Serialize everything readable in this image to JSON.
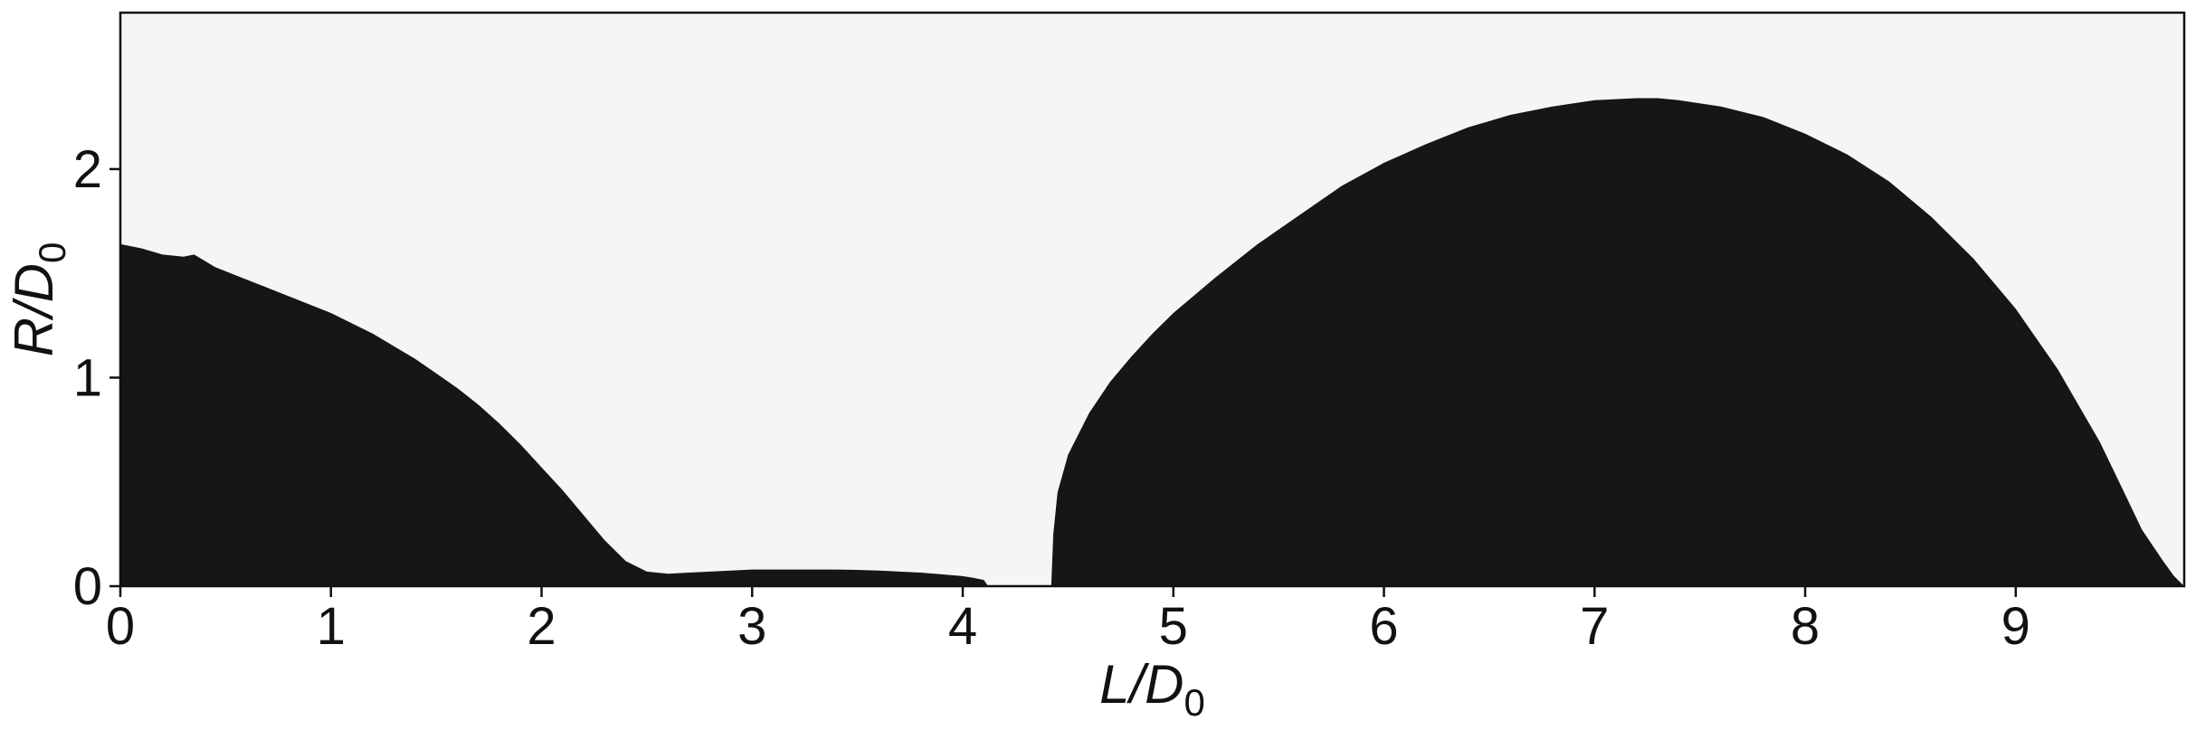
{
  "chart_data": {
    "type": "area",
    "title": "",
    "xlabel": {
      "main": "L/D",
      "sub": "0"
    },
    "ylabel": {
      "main": "R/D",
      "sub": "0"
    },
    "xlim": [
      0,
      9.8
    ],
    "ylim": [
      0,
      2.75
    ],
    "xticks": [
      "0",
      "1",
      "2",
      "3",
      "4",
      "5",
      "6",
      "7",
      "8",
      "9"
    ],
    "yticks": [
      "0",
      "1",
      "2"
    ],
    "grid": false,
    "colors": {
      "liquid": "#161616",
      "background": "#f5f5f5",
      "axes": "#111111"
    },
    "series": [
      {
        "x": [
          0,
          0.1,
          0.2,
          0.3,
          0.35,
          0.4,
          0.45,
          0.5,
          0.6,
          0.7,
          0.8,
          0.9,
          1.0,
          1.1,
          1.2,
          1.3,
          1.4,
          1.5,
          1.6,
          1.7,
          1.8,
          1.9,
          2.0,
          2.1,
          2.2,
          2.3,
          2.4,
          2.5,
          2.6,
          2.7,
          2.8,
          2.9,
          3.0,
          3.1,
          3.2,
          3.3,
          3.4,
          3.5,
          3.6,
          3.7,
          3.8,
          3.9,
          4.0,
          4.05,
          4.1,
          4.12
        ],
        "y": [
          1.64,
          1.62,
          1.59,
          1.58,
          1.59,
          1.56,
          1.53,
          1.51,
          1.47,
          1.43,
          1.39,
          1.35,
          1.31,
          1.26,
          1.21,
          1.15,
          1.09,
          1.02,
          0.95,
          0.87,
          0.78,
          0.68,
          0.57,
          0.46,
          0.34,
          0.22,
          0.12,
          0.07,
          0.06,
          0.065,
          0.07,
          0.075,
          0.08,
          0.08,
          0.08,
          0.08,
          0.08,
          0.078,
          0.075,
          0.07,
          0.065,
          0.057,
          0.048,
          0.04,
          0.03,
          0.0
        ]
      },
      {
        "x": [
          4.42,
          4.43,
          4.45,
          4.5,
          4.6,
          4.7,
          4.8,
          4.9,
          5.0,
          5.2,
          5.4,
          5.6,
          5.8,
          6.0,
          6.2,
          6.4,
          6.6,
          6.8,
          7.0,
          7.2,
          7.3,
          7.4,
          7.6,
          7.8,
          8.0,
          8.2,
          8.4,
          8.6,
          8.8,
          9.0,
          9.2,
          9.4,
          9.5,
          9.6,
          9.7,
          9.75,
          9.78,
          9.8
        ],
        "y": [
          0.0,
          0.25,
          0.45,
          0.63,
          0.83,
          0.98,
          1.1,
          1.21,
          1.31,
          1.48,
          1.64,
          1.78,
          1.92,
          2.03,
          2.12,
          2.2,
          2.26,
          2.3,
          2.33,
          2.34,
          2.34,
          2.33,
          2.3,
          2.25,
          2.17,
          2.07,
          1.94,
          1.77,
          1.57,
          1.33,
          1.04,
          0.69,
          0.48,
          0.27,
          0.12,
          0.05,
          0.02,
          0.0
        ]
      }
    ]
  }
}
